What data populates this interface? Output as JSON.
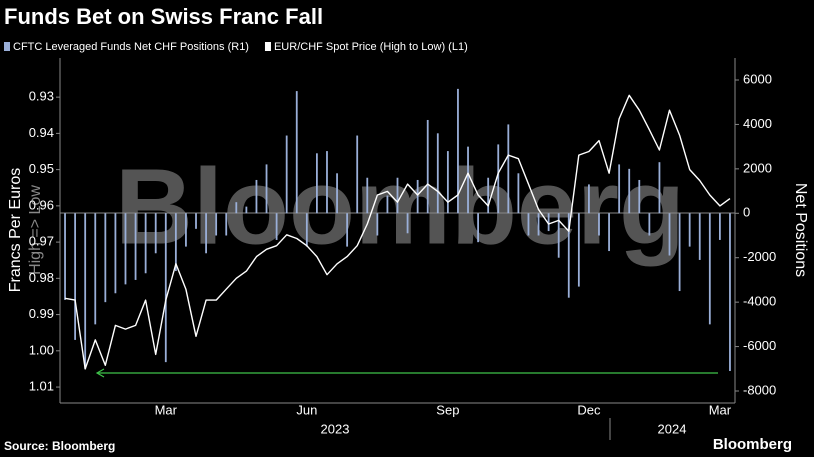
{
  "chart_data": {
    "type": "bar-line",
    "title": "Funds Bet on Swiss Franc Fall",
    "source": "Source: Bloomberg",
    "brand": "Bloomberg",
    "watermark": "Bloomberg",
    "y_label": "Francs Per Euros",
    "y_sublabel": "High => Low",
    "y2_label": "Net Positions",
    "year_labels": [
      "2023",
      "2024"
    ],
    "categories": [
      null,
      null,
      null,
      null,
      null,
      null,
      null,
      null,
      null,
      null,
      "Mar",
      null,
      null,
      null,
      null,
      null,
      null,
      null,
      null,
      null,
      null,
      null,
      null,
      null,
      "Jun",
      null,
      null,
      null,
      null,
      null,
      null,
      null,
      null,
      null,
      null,
      null,
      null,
      null,
      "Sep",
      null,
      null,
      null,
      null,
      null,
      null,
      null,
      null,
      null,
      null,
      null,
      null,
      null,
      "Dec",
      null,
      null,
      null,
      null,
      null,
      null,
      null,
      null,
      null,
      null,
      null,
      null,
      "Mar",
      null
    ],
    "ylim": [
      1.0144,
      0.9192
    ],
    "yticks": [
      0.93,
      0.94,
      0.95,
      0.96,
      0.97,
      0.98,
      0.99,
      {
        "value": 1,
        "label": "1.00"
      },
      1.01
    ],
    "y2lim": [
      -8540,
      6990
    ],
    "y2ticks": [
      -8000,
      -6000,
      -4000,
      -2000,
      0,
      2000,
      4000,
      6000
    ],
    "series": [
      {
        "name": "CFTC Leveraged Funds Net CHF Positions (R1)",
        "type": "bar",
        "axis": "y2",
        "color": "#9aafd8",
        "values": [
          -3900,
          -5700,
          -7000,
          -5000,
          -4000,
          -3600,
          -3200,
          -3000,
          -2700,
          -1800,
          -6700,
          -2600,
          -1500,
          -700,
          -1800,
          -1000,
          -1000,
          500,
          300,
          1500,
          2200,
          -1200,
          3500,
          5500,
          -1500,
          2700,
          2800,
          1800,
          -1500,
          3500,
          1600,
          -1000,
          800,
          1600,
          -900,
          1500,
          4200,
          3600,
          2800,
          5600,
          3000,
          -1300,
          1600,
          3100,
          4000,
          1800,
          -1000,
          -1000,
          -800,
          -2000,
          -3800,
          -3300,
          1300,
          -1000,
          -1700,
          2200,
          2000,
          1500,
          -1000,
          2300,
          -1900,
          -3500,
          -1500,
          -2100,
          -5000,
          -1200,
          -7100
        ]
      },
      {
        "name": "EUR/CHF Spot Price (High to Low) (L1)",
        "type": "line",
        "axis": "y",
        "color": "#ffffff",
        "values": [
          0.9855,
          0.986,
          1.005,
          0.997,
          1.004,
          0.993,
          0.994,
          0.993,
          0.986,
          1.001,
          0.986,
          0.976,
          0.983,
          0.996,
          0.986,
          0.986,
          0.983,
          0.98,
          0.978,
          0.974,
          0.972,
          0.971,
          0.968,
          0.969,
          0.971,
          0.974,
          0.979,
          0.976,
          0.974,
          0.971,
          0.965,
          0.957,
          0.956,
          0.959,
          0.954,
          0.957,
          0.954,
          0.956,
          0.959,
          0.957,
          0.951,
          0.957,
          0.96,
          0.951,
          0.946,
          0.947,
          0.954,
          0.961,
          0.965,
          0.964,
          0.967,
          0.946,
          0.945,
          0.942,
          0.951,
          0.936,
          0.9295,
          0.9336,
          0.939,
          0.9446,
          0.9336,
          0.9405,
          0.95,
          0.953,
          0.957,
          0.96,
          0.958
        ]
      }
    ]
  }
}
